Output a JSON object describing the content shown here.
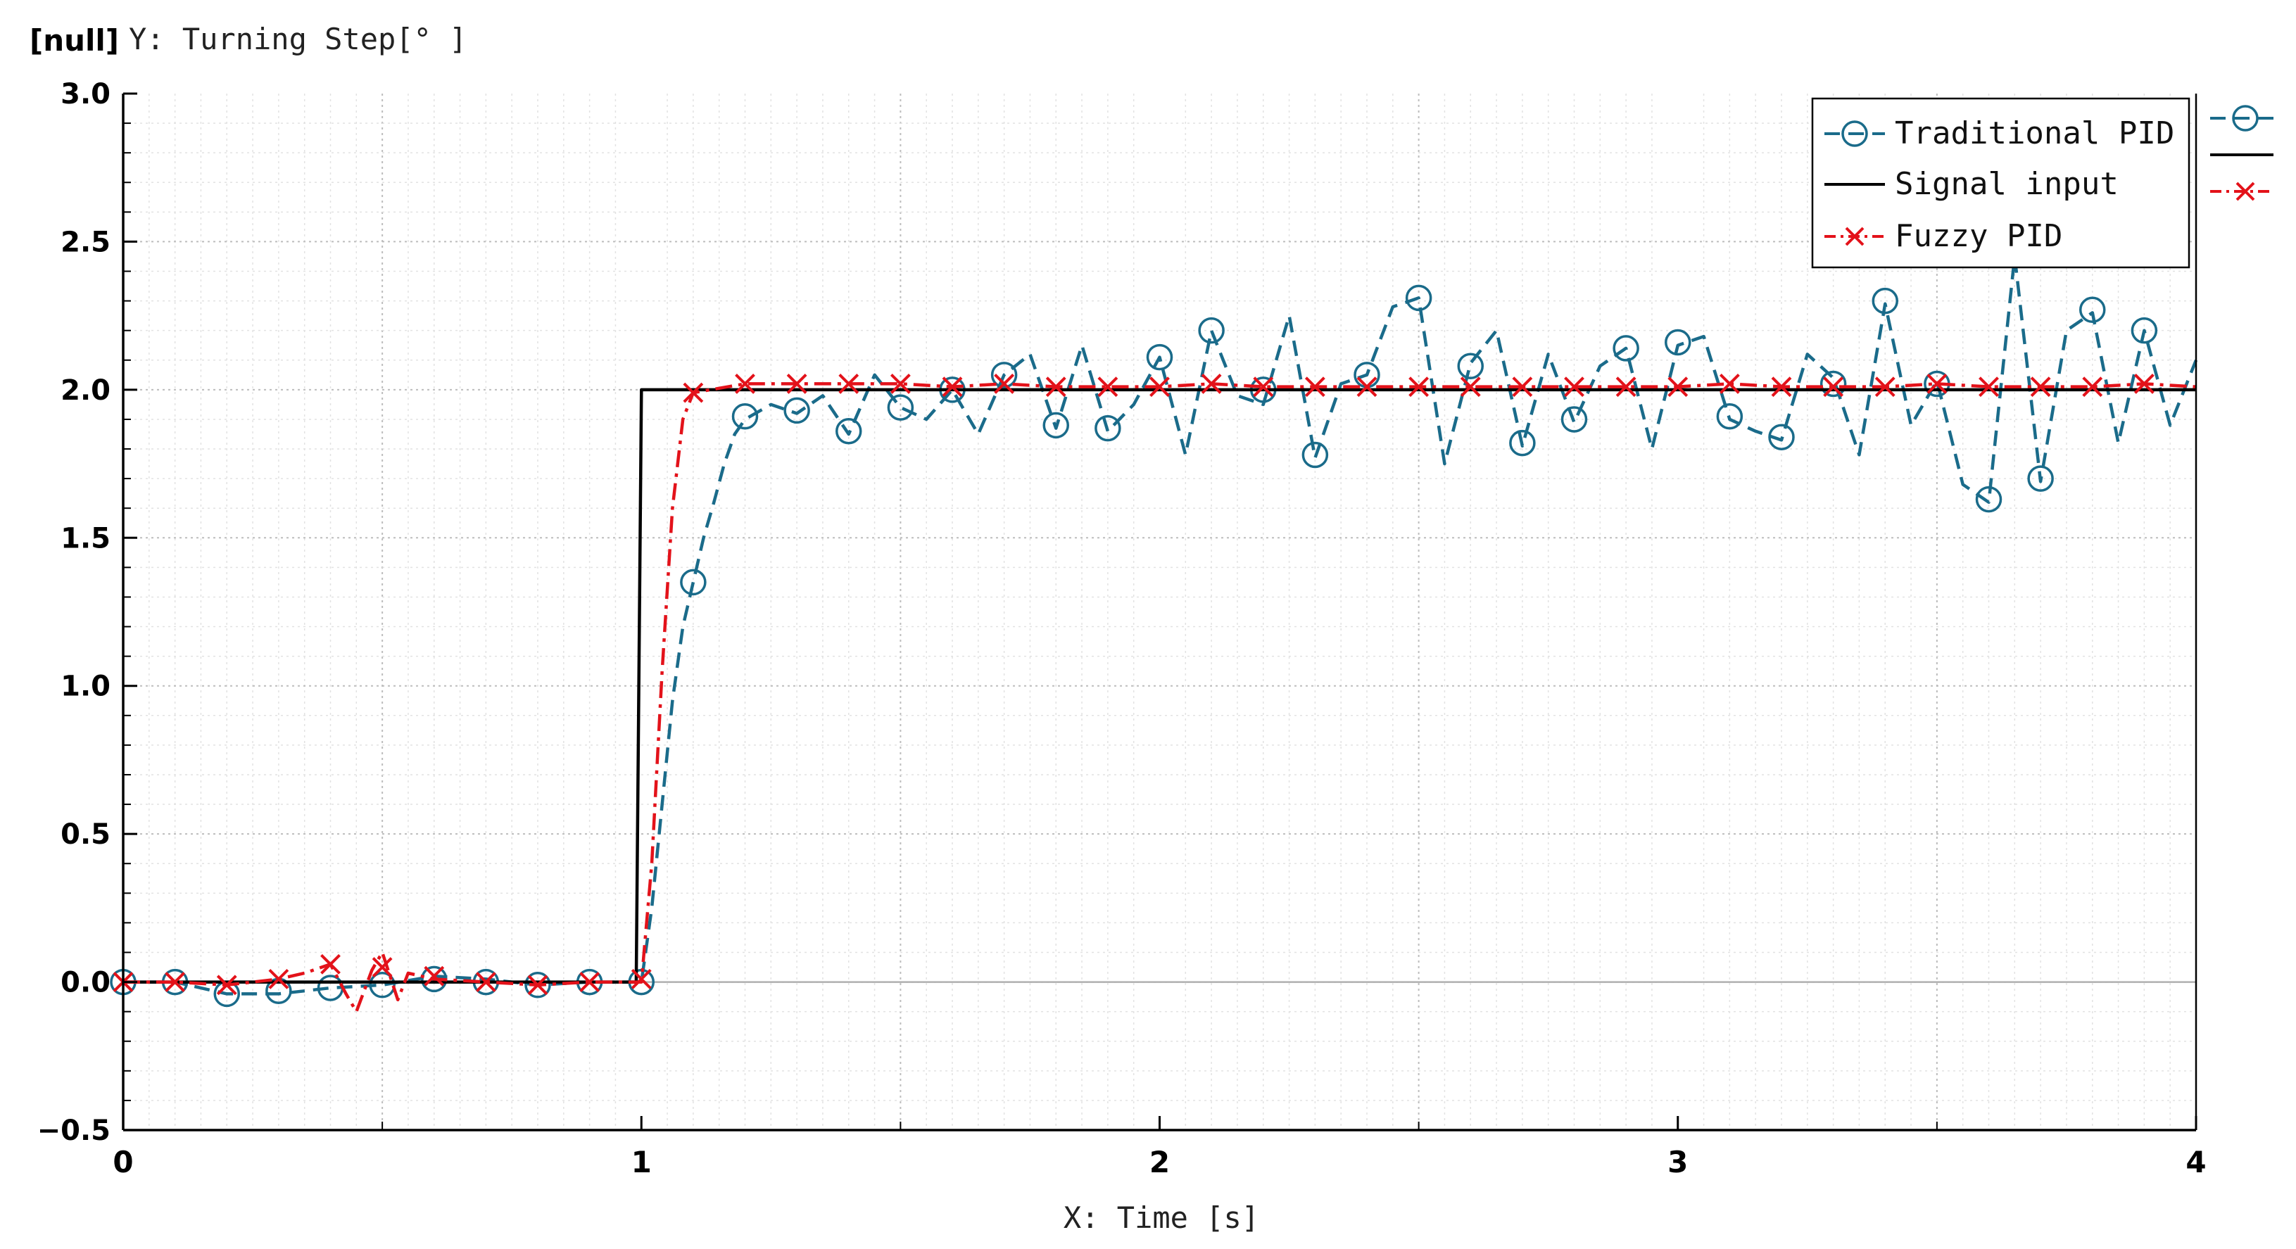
{
  "chart_data": {
    "type": "line",
    "null_tag": "[null]",
    "ylabel": "Y: Turning Step[° ]",
    "xlabel": "X: Time [s]",
    "xlim": [
      0,
      4
    ],
    "ylim": [
      -0.5,
      3.0
    ],
    "x_ticks": [
      "0",
      "1",
      "2",
      "3",
      "4"
    ],
    "y_ticks": [
      "−0.5",
      "0.0",
      "0.5",
      "1.0",
      "1.5",
      "2.0",
      "2.5",
      "3.0"
    ],
    "grid": true,
    "legend_position": "top-right",
    "colors": {
      "traditional": "#1a6b8a",
      "signal": "#000000",
      "fuzzy": "#e3121a"
    },
    "series": [
      {
        "name": "Traditional PID",
        "style": "dashed",
        "marker": "circle",
        "x": [
          0,
          0.1,
          0.2,
          0.3,
          0.4,
          0.5,
          0.6,
          0.7,
          0.8,
          0.9,
          1.0,
          1.02,
          1.04,
          1.06,
          1.08,
          1.1,
          1.12,
          1.14,
          1.16,
          1.18,
          1.2,
          1.25,
          1.3,
          1.35,
          1.4,
          1.45,
          1.5,
          1.55,
          1.6,
          1.65,
          1.7,
          1.75,
          1.8,
          1.85,
          1.9,
          1.95,
          2.0,
          2.05,
          2.1,
          2.15,
          2.2,
          2.25,
          2.3,
          2.35,
          2.4,
          2.45,
          2.5,
          2.55,
          2.6,
          2.65,
          2.7,
          2.75,
          2.8,
          2.85,
          2.9,
          2.95,
          3.0,
          3.05,
          3.1,
          3.15,
          3.2,
          3.25,
          3.3,
          3.35,
          3.4,
          3.45,
          3.5,
          3.55,
          3.6,
          3.65,
          3.7,
          3.75,
          3.8,
          3.85,
          3.9,
          3.95,
          4.0
        ],
        "values": [
          0.0,
          0.0,
          -0.04,
          -0.04,
          -0.02,
          -0.01,
          0.02,
          0.01,
          -0.01,
          0.0,
          0.0,
          0.25,
          0.6,
          0.95,
          1.2,
          1.35,
          1.5,
          1.62,
          1.75,
          1.85,
          1.9,
          1.95,
          1.92,
          1.98,
          1.85,
          2.05,
          1.94,
          1.9,
          2.0,
          1.85,
          2.05,
          2.12,
          1.87,
          2.15,
          1.86,
          1.95,
          2.11,
          1.78,
          2.2,
          1.98,
          1.95,
          2.25,
          1.77,
          2.02,
          2.05,
          2.28,
          2.31,
          1.75,
          2.09,
          2.2,
          1.81,
          2.12,
          1.89,
          2.08,
          2.14,
          1.8,
          2.15,
          2.18,
          1.9,
          1.86,
          1.83,
          2.12,
          2.04,
          1.78,
          2.29,
          1.88,
          2.03,
          1.68,
          1.62,
          2.45,
          1.69,
          2.2,
          2.26,
          1.82,
          2.2,
          1.88,
          2.1
        ],
        "marker_x": [
          0,
          0.1,
          0.2,
          0.3,
          0.4,
          0.5,
          0.6,
          0.7,
          0.8,
          0.9,
          1.0,
          1.1,
          1.2,
          1.3,
          1.4,
          1.5,
          1.6,
          1.7,
          1.8,
          1.9,
          2.0,
          2.1,
          2.2,
          2.3,
          2.4,
          2.5,
          2.6,
          2.7,
          2.8,
          2.9,
          3.0,
          3.1,
          3.2,
          3.3,
          3.4,
          3.5,
          3.6,
          3.7,
          3.8,
          3.9
        ],
        "marker_values": [
          0.0,
          0.0,
          -0.04,
          -0.03,
          -0.02,
          -0.01,
          0.01,
          0.0,
          -0.01,
          0.0,
          0.0,
          1.35,
          1.91,
          1.93,
          1.86,
          1.94,
          2.0,
          2.05,
          1.88,
          1.87,
          2.11,
          2.2,
          2.0,
          1.78,
          2.05,
          2.31,
          2.08,
          1.82,
          1.9,
          2.14,
          2.16,
          1.91,
          1.84,
          2.02,
          2.3,
          2.02,
          1.63,
          1.7,
          2.27,
          2.2
        ]
      },
      {
        "name": "Signal input",
        "style": "solid",
        "marker": "none",
        "x": [
          0,
          0.99,
          1.0,
          4.0
        ],
        "values": [
          0.0,
          0.0,
          2.0,
          2.0
        ]
      },
      {
        "name": "Fuzzy PID",
        "style": "dashdot",
        "marker": "x",
        "x": [
          0,
          0.1,
          0.2,
          0.3,
          0.35,
          0.4,
          0.43,
          0.45,
          0.48,
          0.5,
          0.53,
          0.55,
          0.6,
          0.7,
          0.8,
          0.9,
          1.0,
          1.02,
          1.04,
          1.06,
          1.08,
          1.1,
          1.2,
          1.3,
          1.4,
          1.5,
          1.6,
          1.7,
          1.8,
          1.9,
          2.0,
          2.1,
          2.2,
          2.3,
          2.4,
          2.5,
          2.6,
          2.7,
          2.8,
          2.9,
          3.0,
          3.1,
          3.2,
          3.3,
          3.4,
          3.5,
          3.6,
          3.7,
          3.8,
          3.9,
          4.0
        ],
        "values": [
          0.0,
          0.0,
          -0.01,
          0.01,
          0.03,
          0.06,
          -0.04,
          -0.1,
          0.04,
          0.1,
          -0.06,
          0.03,
          0.01,
          0.0,
          -0.01,
          0.0,
          0.0,
          0.4,
          1.05,
          1.6,
          1.9,
          1.99,
          2.02,
          2.02,
          2.02,
          2.02,
          2.01,
          2.02,
          2.01,
          2.01,
          2.01,
          2.02,
          2.01,
          2.01,
          2.01,
          2.01,
          2.01,
          2.01,
          2.01,
          2.01,
          2.01,
          2.02,
          2.01,
          2.01,
          2.01,
          2.02,
          2.01,
          2.01,
          2.01,
          2.02,
          2.01
        ],
        "marker_x": [
          0,
          0.1,
          0.2,
          0.3,
          0.4,
          0.5,
          0.6,
          0.7,
          0.8,
          0.9,
          1.0,
          1.1,
          1.2,
          1.3,
          1.4,
          1.5,
          1.6,
          1.7,
          1.8,
          1.9,
          2.0,
          2.1,
          2.2,
          2.3,
          2.4,
          2.5,
          2.6,
          2.7,
          2.8,
          2.9,
          3.0,
          3.1,
          3.2,
          3.3,
          3.4,
          3.5,
          3.6,
          3.7,
          3.8,
          3.9
        ],
        "marker_values": [
          0.0,
          0.0,
          -0.01,
          0.01,
          0.06,
          0.05,
          0.02,
          0.0,
          -0.01,
          0.0,
          0.01,
          1.99,
          2.02,
          2.02,
          2.02,
          2.02,
          2.01,
          2.02,
          2.01,
          2.01,
          2.01,
          2.02,
          2.01,
          2.01,
          2.01,
          2.01,
          2.01,
          2.01,
          2.01,
          2.01,
          2.01,
          2.02,
          2.01,
          2.01,
          2.01,
          2.02,
          2.01,
          2.01,
          2.01,
          2.02
        ]
      }
    ]
  }
}
